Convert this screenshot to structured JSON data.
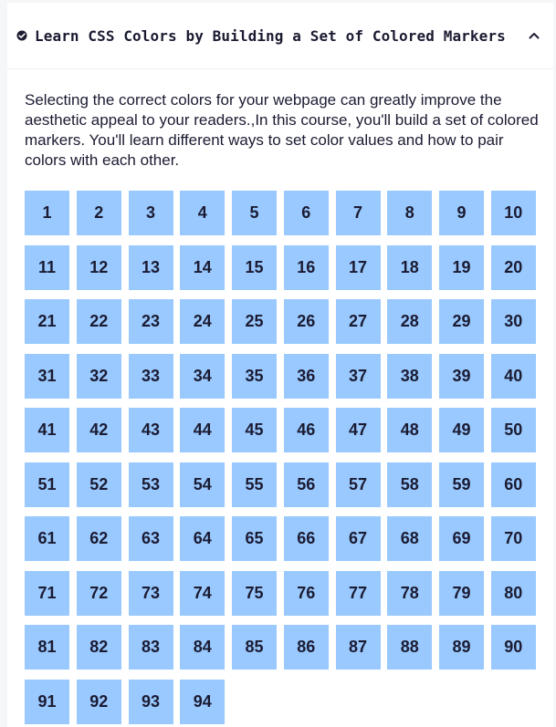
{
  "course": {
    "title": "Learn CSS Colors by Building a Set of Colored Markers",
    "description": "Selecting the correct colors for your webpage can greatly improve the aesthetic appeal to your readers.,In this course, you'll build a set of colored markers. You'll learn different ways to set color values and how to pair colors with each other.",
    "status_icon": "check-circle-icon",
    "toggle_icon": "chevron-up-icon",
    "step_color": "#99c9ff",
    "text_color": "#1b1b32"
  },
  "steps": [
    "1",
    "2",
    "3",
    "4",
    "5",
    "6",
    "7",
    "8",
    "9",
    "10",
    "11",
    "12",
    "13",
    "14",
    "15",
    "16",
    "17",
    "18",
    "19",
    "20",
    "21",
    "22",
    "23",
    "24",
    "25",
    "26",
    "27",
    "28",
    "29",
    "30",
    "31",
    "32",
    "33",
    "34",
    "35",
    "36",
    "37",
    "38",
    "39",
    "40",
    "41",
    "42",
    "43",
    "44",
    "45",
    "46",
    "47",
    "48",
    "49",
    "50",
    "51",
    "52",
    "53",
    "54",
    "55",
    "56",
    "57",
    "58",
    "59",
    "60",
    "61",
    "62",
    "63",
    "64",
    "65",
    "66",
    "67",
    "68",
    "69",
    "70",
    "71",
    "72",
    "73",
    "74",
    "75",
    "76",
    "77",
    "78",
    "79",
    "80",
    "81",
    "82",
    "83",
    "84",
    "85",
    "86",
    "87",
    "88",
    "89",
    "90",
    "91",
    "92",
    "93",
    "94"
  ]
}
